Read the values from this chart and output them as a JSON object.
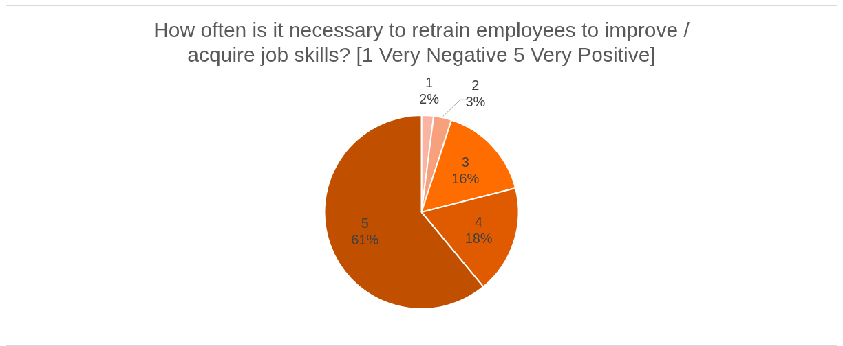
{
  "chart_data": {
    "type": "pie",
    "title": "How often is it necessary to retrain employees to improve / acquire job skills? [1 Very Negative 5 Very Positive]",
    "categories": [
      "1",
      "2",
      "3",
      "4",
      "5"
    ],
    "values": [
      2,
      3,
      16,
      18,
      61
    ],
    "colors": [
      "#f9b4a4",
      "#f7a07c",
      "#ff6d00",
      "#e05b00",
      "#c04f00"
    ],
    "value_labels": [
      "2%",
      "3%",
      "16%",
      "18%",
      "61%"
    ],
    "legend": false
  }
}
